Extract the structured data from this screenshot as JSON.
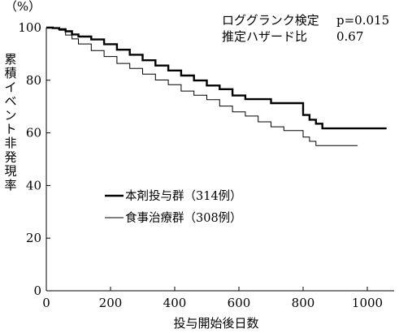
{
  "chart_data": {
    "type": "line",
    "title": "",
    "xlabel": "投与開始後日数",
    "ylabel": "累積イベント非発現率",
    "yunit": "（%）",
    "xlim": [
      0,
      1100
    ],
    "ylim": [
      0,
      100
    ],
    "xticks": [
      0,
      200,
      400,
      600,
      800,
      1000
    ],
    "yticks": [
      0,
      20,
      40,
      60,
      80,
      100
    ],
    "x_tick_labels": [
      "0",
      "200",
      "400",
      "600",
      "800",
      "1000"
    ],
    "y_tick_labels": [
      "0",
      "20",
      "40",
      "60",
      "80",
      "100"
    ],
    "grid": false,
    "legend_position": "center-left",
    "annotations": {
      "test_name": "ロググランク検定",
      "p_value": "p=0.015",
      "estimator_name": "推定ハザード比",
      "hazard_ratio": "0.67"
    },
    "series": [
      {
        "name": "本剤投与群（314例）",
        "style": "thick",
        "color": "#000000",
        "x": [
          0,
          20,
          40,
          60,
          80,
          100,
          140,
          180,
          220,
          260,
          300,
          340,
          380,
          420,
          460,
          500,
          540,
          580,
          620,
          650,
          700,
          760,
          800,
          820,
          840,
          860,
          880,
          1060
        ],
        "y": [
          100,
          99.8,
          99.4,
          98.6,
          97.4,
          96.6,
          95.5,
          93.7,
          91.6,
          89.7,
          87.6,
          85.6,
          83.7,
          81.8,
          79.9,
          78.0,
          76.6,
          74.2,
          72.8,
          72.8,
          71.3,
          71.3,
          66.8,
          65.0,
          63.5,
          61.7,
          61.7,
          61.7
        ]
      },
      {
        "name": "食事治療群（308例）",
        "style": "thin",
        "color": "#000000",
        "x": [
          0,
          20,
          40,
          60,
          80,
          100,
          140,
          180,
          220,
          260,
          300,
          340,
          380,
          420,
          460,
          500,
          540,
          580,
          620,
          660,
          700,
          740,
          760,
          800,
          820,
          840,
          860,
          970
        ],
        "y": [
          100,
          99.7,
          99.0,
          97.2,
          95.7,
          93.8,
          91.3,
          89.0,
          86.4,
          84.5,
          82.3,
          80.1,
          78.3,
          75.9,
          74.3,
          72.6,
          70.2,
          68.0,
          66.4,
          64.2,
          62.3,
          60.9,
          60.9,
          58.4,
          56.8,
          55.2,
          55.2,
          55.2
        ]
      }
    ]
  }
}
